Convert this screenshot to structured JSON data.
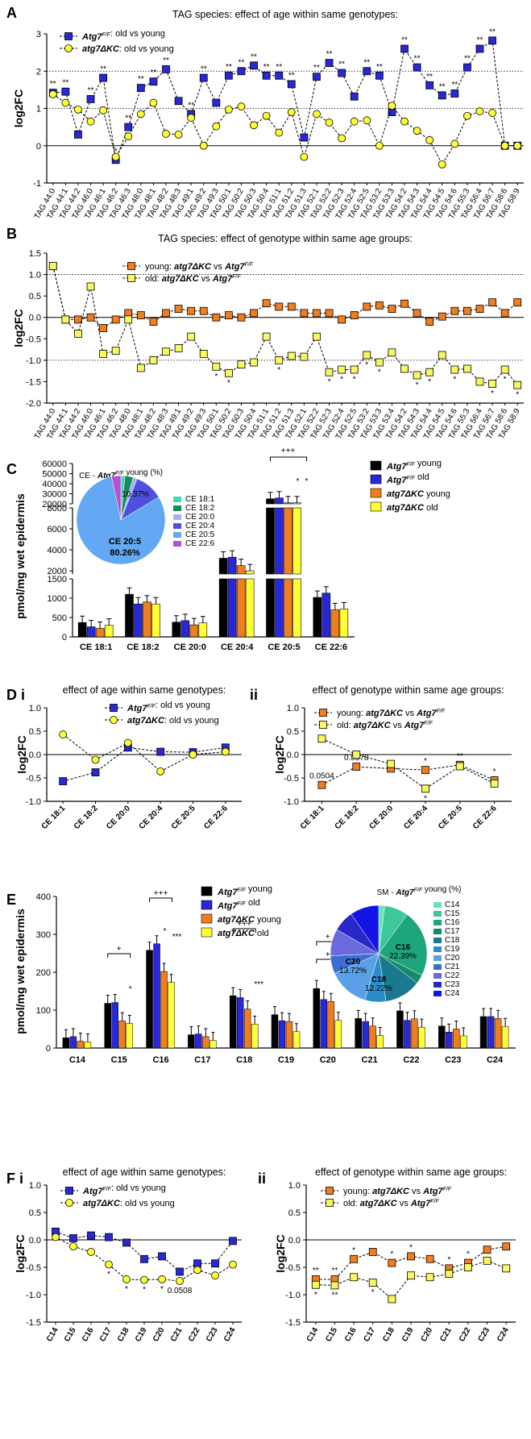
{
  "colors": {
    "blue": "#2828d8",
    "yellow": "#ffff33",
    "orange": "#f07d1e",
    "lightyellow": "#f8f860",
    "black": "#000000"
  },
  "chart_data": [
    {
      "id": "A",
      "panel": "A",
      "type": "line",
      "title": "TAG species: effect of age within same genotypes:",
      "ylabel": "log2FC",
      "ylim": [
        -1,
        3
      ],
      "yticks": [
        "-1",
        "0",
        "1",
        "2",
        "3"
      ],
      "categories": [
        "TAG 44:0",
        "TAG 44:1",
        "TAG 44:2",
        "TAG 46:0",
        "TAG 46:1",
        "TAG 46:2",
        "TAG 46:3",
        "TAG 48:0",
        "TAG 48:1",
        "TAG 48:2",
        "TAG 48:3",
        "TAG 49:1",
        "TAG 49:2",
        "TAG 49:3",
        "TAG 50:1",
        "TAG 50:2",
        "TAG 50:3",
        "TAG 50:4",
        "TAG 51:1",
        "TAG 51:2",
        "TAG 51:3",
        "TAG 52:1",
        "TAG 52:2",
        "TAG 52:3",
        "TAG 52:4",
        "TAG 52:5",
        "TAG 53:2",
        "TAG 53:3",
        "TAG 54:2",
        "TAG 54:3",
        "TAG 54:4",
        "TAG 54:5",
        "TAG 54:6",
        "TAG 55:3",
        "TAG 56:4",
        "TAG 56:7",
        "TAG 58:6",
        "TAG 58:9"
      ],
      "legend": [
        "Atg7F/F: old vs young",
        "atg7ΔKC: old vs young"
      ],
      "series": [
        {
          "name": "Atg7F/F: old vs young",
          "color": "blue",
          "marker": "square",
          "values": [
            1.42,
            1.45,
            0.3,
            1.25,
            1.82,
            -0.38,
            0.5,
            1.55,
            1.72,
            2.05,
            1.2,
            0.85,
            1.82,
            1.15,
            1.88,
            2.0,
            2.15,
            1.88,
            1.88,
            1.65,
            0.22,
            1.85,
            2.22,
            1.95,
            1.32,
            2.0,
            1.88,
            0.9,
            2.6,
            2.1,
            1.62,
            1.35,
            1.4,
            2.1,
            2.6,
            2.82,
            0,
            0
          ],
          "stars": [
            "**",
            "**",
            "",
            "**",
            "**",
            "*",
            "**",
            "**",
            "**",
            "**",
            "",
            "**",
            "**",
            "",
            "**",
            "**",
            "**",
            "**",
            "**",
            "**",
            "",
            "**",
            "**",
            "**",
            "",
            "**",
            "**",
            "",
            "**",
            "**",
            "**",
            "**",
            "**",
            "**",
            "**",
            "**",
            "",
            ""
          ]
        },
        {
          "name": "atg7ΔKC: old vs young",
          "color": "yellow",
          "marker": "circle",
          "values": [
            1.38,
            1.15,
            0.97,
            0.65,
            0.95,
            -0.3,
            0.25,
            0.85,
            1.15,
            0.32,
            0.3,
            0.75,
            0.0,
            0.52,
            0.97,
            1.05,
            0.55,
            0.8,
            0.35,
            0.9,
            -0.3,
            0.85,
            0.62,
            0.2,
            0.65,
            0.68,
            0.0,
            1.07,
            0.65,
            0.4,
            0.15,
            -0.5,
            0.05,
            0.8,
            0.92,
            0.88,
            0,
            0
          ],
          "stars": []
        }
      ]
    },
    {
      "id": "B",
      "panel": "B",
      "type": "line",
      "title": "TAG species: effect of genotype within same age groups:",
      "ylabel": "log2FC",
      "ylim": [
        -2,
        1.5
      ],
      "yticks": [
        "-2.0",
        "-1.5",
        "-1.0",
        "-0.5",
        "0.0",
        "0.5",
        "1.0",
        "1.5"
      ],
      "categories": [
        "TAG 44:0",
        "TAG 44:1",
        "TAG 44:2",
        "TAG 46:0",
        "TAG 46:1",
        "TAG 46:2",
        "TAG 48:0",
        "TAG 48:1",
        "TAG 48:2",
        "TAG 48:3",
        "TAG 49:1",
        "TAG 49:2",
        "TAG 49:3",
        "TAG 50:1",
        "TAG 50:2",
        "TAG 50:3",
        "TAG 50:4",
        "TAG 51:1",
        "TAG 51:2",
        "TAG 51:3",
        "TAG 52:1",
        "TAG 52:2",
        "TAG 52:3",
        "TAG 52:4",
        "TAG 52:5",
        "TAG 53:2",
        "TAG 53:3",
        "TAG 53:4",
        "TAG 54:2",
        "TAG 54:3",
        "TAG 54:4",
        "TAG 54:5",
        "TAG 54:6",
        "TAG 55:3",
        "TAG 56:4",
        "TAG 56:7",
        "TAG 58:6",
        "TAG 58:9"
      ],
      "legend": [
        "young: atg7ΔKC vs Atg7F/F",
        "old: atg7ΔKC vs Atg7F/F"
      ],
      "series": [
        {
          "name": "young: atg7ΔKC vs Atg7F/F",
          "color": "orange",
          "marker": "square",
          "values": [
            1.2,
            -0.05,
            -0.05,
            0.0,
            -0.25,
            -0.05,
            0.1,
            0.05,
            -0.1,
            0.1,
            0.2,
            0.15,
            0.15,
            0.0,
            0.05,
            0.0,
            0.1,
            0.33,
            0.25,
            0.25,
            0.1,
            0.1,
            0.1,
            -0.05,
            0.05,
            0.25,
            0.28,
            0.2,
            0.32,
            0.1,
            -0.1,
            0.02,
            0.15,
            0.15,
            0.2,
            0.35,
            0.1,
            0.35
          ],
          "stars": []
        },
        {
          "name": "old: atg7ΔKC vs Atg7F/F",
          "color": "lightyellow",
          "marker": "square",
          "values": [
            1.2,
            -0.05,
            -0.38,
            0.72,
            -0.85,
            -0.78,
            -0.05,
            -1.18,
            -1.0,
            -0.8,
            -0.72,
            -0.45,
            -0.85,
            -1.15,
            -1.3,
            -1.1,
            -1.05,
            -0.45,
            -1.0,
            -0.9,
            -0.92,
            -0.45,
            -1.28,
            -1.22,
            -1.22,
            -0.88,
            -1.05,
            -0.82,
            -1.2,
            -1.35,
            -1.28,
            -0.88,
            -1.22,
            -1.2,
            -1.5,
            -1.55,
            -1.22,
            -1.58
          ],
          "stars": [
            "",
            "",
            "",
            "",
            "",
            "",
            "",
            "",
            "",
            "",
            "",
            "",
            "",
            "*",
            "*",
            "",
            "",
            "",
            "*",
            "",
            "",
            "",
            "*",
            "*",
            "*",
            "*",
            "*",
            "",
            "",
            "*",
            "*",
            "",
            "*",
            "",
            "",
            "*",
            "*",
            "*"
          ]
        }
      ]
    },
    {
      "id": "C",
      "panel": "C",
      "type": "bar",
      "ylabel": "pmol/mg wet epidermis",
      "yticks_low": [
        "0",
        "500",
        "1000",
        "1500"
      ],
      "yticks_mid": [
        "2000",
        "4000",
        "6000",
        "8000"
      ],
      "yticks_high": [
        "20000",
        "30000",
        "40000",
        "50000",
        "60000"
      ],
      "categories": [
        "CE 18:1",
        "CE 18:2",
        "CE 20:0",
        "CE 20:4",
        "CE 20:5",
        "CE 22:6"
      ],
      "legend": [
        "Atg7F/F young",
        "Atg7F/F old",
        "atg7ΔKC young",
        "atg7ΔKC old"
      ],
      "series": [
        {
          "name": "Atg7F/F young",
          "color": "black",
          "values": [
            370,
            1100,
            380,
            3200,
            25000,
            1020
          ]
        },
        {
          "name": "Atg7F/F old",
          "color": "blue",
          "values": [
            260,
            850,
            420,
            3300,
            25800,
            1130
          ]
        },
        {
          "name": "atg7ΔKC young",
          "color": "orange",
          "values": [
            220,
            900,
            310,
            2500,
            21000,
            700
          ]
        },
        {
          "name": "atg7ΔKC old",
          "color": "yellow",
          "values": [
            300,
            850,
            360,
            2000,
            21000,
            720
          ]
        }
      ],
      "annotations": [
        "+++",
        "*",
        "*"
      ],
      "pie": {
        "title": "CE - Atg7F/F young (%)",
        "labels": [
          "CE 18:1",
          "CE 18:2",
          "CE 20:0",
          "CE 20:4",
          "CE 20:5",
          "CE 22:6"
        ],
        "values": [
          1.5,
          3.0,
          1.5,
          10.37,
          80.26,
          3.37
        ],
        "colors": [
          "#3cdcb4",
          "#1a8a58",
          "#a0b4f0",
          "#5050e0",
          "#64a8f4",
          "#b452d2"
        ],
        "callouts": [
          "CE 20:5",
          "80.26%",
          "10.37%"
        ]
      }
    },
    {
      "id": "Di",
      "panel": "D i",
      "type": "line",
      "title": "effect of age within same genotypes:",
      "ylabel": "log2FC",
      "ylim": [
        -1,
        1
      ],
      "yticks": [
        "-1.0",
        "-0.5",
        "0.0",
        "0.5",
        "1.0"
      ],
      "categories": [
        "CE 18:1",
        "CE 18:2",
        "CE 20:0",
        "CE 20:4",
        "CE 20:5",
        "CE 22:6"
      ],
      "legend": [
        "Atg7F/F: old vs young",
        "atg7ΔKC: old vs young"
      ],
      "series": [
        {
          "name": "Atg7F/F: old vs young",
          "color": "blue",
          "marker": "square",
          "values": [
            -0.57,
            -0.38,
            0.15,
            0.06,
            0.05,
            0.15
          ],
          "stars": []
        },
        {
          "name": "atg7ΔKC: old vs young",
          "color": "yellow",
          "marker": "circle",
          "values": [
            0.43,
            -0.11,
            0.25,
            -0.36,
            0.0,
            0.06
          ],
          "stars": []
        }
      ]
    },
    {
      "id": "Dii",
      "panel": "ii",
      "type": "line",
      "title": "effect of genotype within same age groups:",
      "ylabel": "log2FC",
      "ylim": [
        -1,
        1
      ],
      "yticks": [
        "-1.0",
        "-0.5",
        "0.0",
        "0.5",
        "1.0"
      ],
      "categories": [
        "CE 18:1",
        "CE 18:2",
        "CE 20:0",
        "CE 20:4",
        "CE 20:5",
        "CE 22:6"
      ],
      "legend": [
        "young: atg7ΔKC vs Atg7F/F",
        "old: atg7ΔKC vs Atg7F/F"
      ],
      "series": [
        {
          "name": "young: atg7ΔKC vs Atg7F/F",
          "color": "orange",
          "marker": "square",
          "values": [
            -0.65,
            -0.26,
            -0.3,
            -0.33,
            -0.22,
            -0.55
          ],
          "stars": [
            "0.0504",
            "0.0578",
            "",
            "*",
            "**",
            "*"
          ]
        },
        {
          "name": "old: atg7ΔKC vs Atg7F/F",
          "color": "lightyellow",
          "marker": "square",
          "values": [
            0.34,
            0.0,
            -0.2,
            -0.73,
            -0.25,
            -0.62
          ],
          "stars": [
            "",
            "",
            "",
            "*",
            "",
            ""
          ]
        }
      ]
    },
    {
      "id": "E",
      "panel": "E",
      "type": "bar",
      "ylabel": "pmol/mg wet epidermis",
      "ylim": [
        0,
        400
      ],
      "yticks": [
        "0",
        "100",
        "200",
        "300",
        "400"
      ],
      "categories": [
        "C14",
        "C15",
        "C16",
        "C17",
        "C18",
        "C19",
        "C20",
        "C21",
        "C22",
        "C23",
        "C24"
      ],
      "legend": [
        "Atg7F/F young",
        "Atg7F/F old",
        "atg7ΔKC young",
        "atg7ΔKC old"
      ],
      "series": [
        {
          "name": "Atg7F/F young",
          "color": "black",
          "values": [
            27,
            118,
            258,
            35,
            138,
            88,
            157,
            78,
            98,
            58,
            83
          ]
        },
        {
          "name": "Atg7F/F old",
          "color": "blue",
          "values": [
            30,
            120,
            275,
            37,
            133,
            72,
            128,
            70,
            73,
            42,
            83
          ]
        },
        {
          "name": "atg7ΔKC young",
          "color": "orange",
          "values": [
            18,
            72,
            202,
            30,
            103,
            70,
            123,
            58,
            77,
            50,
            78
          ]
        },
        {
          "name": "atg7ΔKC old",
          "color": "yellow",
          "values": [
            16,
            65,
            173,
            20,
            63,
            43,
            73,
            33,
            55,
            32,
            57
          ]
        }
      ],
      "annotations": [
        "+",
        "*",
        "+++",
        "*",
        "***",
        "+++",
        "***",
        "+",
        "+",
        "*",
        "***"
      ],
      "pie": {
        "title": "SM - Atg7F/F young (%)",
        "labels": [
          "C14",
          "C15",
          "C16",
          "C17",
          "C18",
          "C19",
          "C20",
          "C21",
          "C22",
          "C23",
          "C24"
        ],
        "values": [
          2,
          8,
          22.39,
          3,
          12.22,
          7,
          13.72,
          6,
          9,
          7,
          9.67
        ],
        "colors": [
          "#64e6b4",
          "#3cc89a",
          "#1fa57c",
          "#158a6a",
          "#1c7890",
          "#2a8cc8",
          "#5aa0e6",
          "#3c6ed2",
          "#6a6adc",
          "#2828c8",
          "#1414e6"
        ],
        "callouts": [
          "C16",
          "22.39%",
          "C18",
          "12.22%",
          "C20",
          "13.72%"
        ]
      }
    },
    {
      "id": "Fi",
      "panel": "F i",
      "type": "line",
      "title": "effect of age within same genotypes:",
      "ylabel": "log2FC",
      "ylim": [
        -1.5,
        1
      ],
      "yticks": [
        "-1.5",
        "-1.0",
        "-0.5",
        "0.0",
        "0.5",
        "1.0"
      ],
      "categories": [
        "C14",
        "C15",
        "C16",
        "C17",
        "C18",
        "C19",
        "C20",
        "C21",
        "C22",
        "C23",
        "C24"
      ],
      "legend": [
        "Atg7F/F: old vs young",
        "atg7ΔKC: old vs young"
      ],
      "series": [
        {
          "name": "Atg7F/F: old vs young",
          "color": "blue",
          "marker": "square",
          "values": [
            0.15,
            0.03,
            0.08,
            0.05,
            -0.05,
            -0.35,
            -0.3,
            -0.58,
            -0.43,
            -0.43,
            -0.02
          ],
          "stars": []
        },
        {
          "name": "atg7ΔKC: old vs young",
          "color": "yellow",
          "marker": "circle",
          "values": [
            0.05,
            -0.12,
            -0.22,
            -0.45,
            -0.72,
            -0.73,
            -0.72,
            -0.75,
            -0.55,
            -0.65,
            -0.45
          ],
          "stars": [
            "",
            "",
            "",
            "*",
            "*",
            "*",
            "*",
            "0.0508",
            "",
            "",
            ""
          ]
        }
      ]
    },
    {
      "id": "Fii",
      "panel": "ii",
      "type": "line",
      "title": "effect of genotype within same age groups:",
      "ylabel": "log2FC",
      "ylim": [
        -1.5,
        1
      ],
      "yticks": [
        "-1.5",
        "-1.0",
        "-0.5",
        "0.0",
        "0.5",
        "1.0"
      ],
      "categories": [
        "C14",
        "C15",
        "C16",
        "C17",
        "C18",
        "C19",
        "C20",
        "C21",
        "C22",
        "C23",
        "C24"
      ],
      "legend": [
        "young: atg7ΔKC vs Atg7F/F",
        "old: atg7ΔKC vs Atg7F/F"
      ],
      "series": [
        {
          "name": "young: atg7ΔKC vs Atg7F/F",
          "color": "orange",
          "marker": "square",
          "values": [
            -0.72,
            -0.72,
            -0.35,
            -0.22,
            -0.42,
            -0.3,
            -0.35,
            -0.52,
            -0.42,
            -0.18,
            -0.12
          ],
          "stars": [
            "**",
            "**",
            "*",
            "",
            "*",
            "*",
            "",
            "*",
            "*",
            "",
            ""
          ]
        },
        {
          "name": "old: atg7ΔKC vs Atg7F/F",
          "color": "lightyellow",
          "marker": "square",
          "values": [
            -0.82,
            -0.83,
            -0.68,
            -0.78,
            -1.08,
            -0.65,
            -0.68,
            -0.62,
            -0.5,
            -0.38,
            -0.52
          ],
          "stars": [
            "*",
            "**",
            "",
            "*",
            "",
            "",
            "",
            "",
            "",
            "",
            ""
          ]
        }
      ]
    }
  ]
}
